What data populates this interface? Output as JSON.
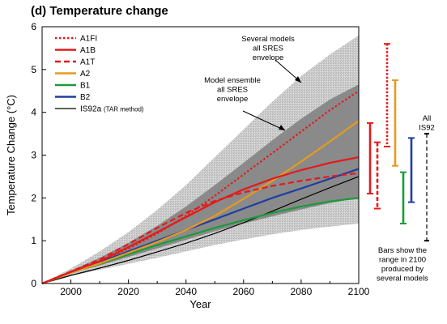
{
  "chart_data": {
    "type": "line",
    "title": "(d) Temperature change",
    "xlabel": "Year",
    "ylabel": "Temperature Change (°C)",
    "xlim": [
      1990,
      2100
    ],
    "ylim": [
      0,
      6
    ],
    "xticks": [
      "2000",
      "2020",
      "2040",
      "2060",
      "2080",
      "2100"
    ],
    "yticks": [
      "0",
      "1",
      "2",
      "3",
      "4",
      "5",
      "6"
    ],
    "x": [
      1990,
      2000,
      2010,
      2020,
      2030,
      2040,
      2050,
      2060,
      2070,
      2080,
      2090,
      2100
    ],
    "series": [
      {
        "name": "A1FI",
        "color": "#e31a1c",
        "style": "dotted",
        "values": [
          0,
          0.27,
          0.52,
          0.82,
          1.17,
          1.58,
          2.05,
          2.55,
          3.05,
          3.55,
          4.05,
          4.5
        ]
      },
      {
        "name": "A1B",
        "color": "#e31a1c",
        "style": "solid",
        "values": [
          0,
          0.27,
          0.52,
          0.85,
          1.2,
          1.55,
          1.9,
          2.2,
          2.45,
          2.65,
          2.82,
          2.95
        ]
      },
      {
        "name": "A1T",
        "color": "#e31a1c",
        "style": "dashed",
        "values": [
          0,
          0.28,
          0.56,
          0.92,
          1.3,
          1.65,
          1.93,
          2.13,
          2.28,
          2.4,
          2.5,
          2.58
        ]
      },
      {
        "name": "A2",
        "color": "#e69a1f",
        "style": "solid",
        "values": [
          0,
          0.25,
          0.47,
          0.72,
          0.97,
          1.25,
          1.58,
          1.98,
          2.4,
          2.85,
          3.32,
          3.8
        ]
      },
      {
        "name": "B1",
        "color": "#1a9b3a",
        "style": "solid",
        "values": [
          0,
          0.25,
          0.46,
          0.68,
          0.9,
          1.1,
          1.3,
          1.48,
          1.65,
          1.8,
          1.92,
          2.0
        ]
      },
      {
        "name": "B2",
        "color": "#1f3fa0",
        "style": "solid",
        "values": [
          0,
          0.26,
          0.5,
          0.75,
          1.0,
          1.25,
          1.5,
          1.75,
          2.0,
          2.22,
          2.45,
          2.68
        ]
      },
      {
        "name": "IS92a (TAR method)",
        "color": "#000000",
        "style": "solid",
        "values": [
          0,
          0.19,
          0.36,
          0.54,
          0.74,
          0.94,
          1.17,
          1.42,
          1.69,
          1.97,
          2.24,
          2.5
        ]
      }
    ],
    "envelopes": [
      {
        "label": "Several models all SRES envelope",
        "color": "#c8c8c8",
        "lower": [
          0,
          0.18,
          0.32,
          0.46,
          0.6,
          0.75,
          0.9,
          1.03,
          1.15,
          1.25,
          1.33,
          1.4
        ],
        "upper": [
          0,
          0.35,
          0.75,
          1.2,
          1.72,
          2.3,
          2.95,
          3.6,
          4.25,
          4.85,
          5.35,
          5.8
        ]
      },
      {
        "label": "Model ensemble all SRES envelope",
        "color": "#8a8a8a",
        "lower": [
          0,
          0.24,
          0.42,
          0.62,
          0.82,
          1.02,
          1.22,
          1.4,
          1.57,
          1.73,
          1.88,
          2.0
        ],
        "upper": [
          0,
          0.3,
          0.6,
          0.95,
          1.35,
          1.8,
          2.3,
          2.82,
          3.35,
          3.85,
          4.3,
          4.65
        ]
      }
    ],
    "range_bars": [
      {
        "name": "A1FI",
        "color": "#e31a1c",
        "style": "dotted",
        "min": 3.2,
        "max": 5.6
      },
      {
        "name": "A1B",
        "color": "#e31a1c",
        "style": "solid",
        "min": 2.1,
        "max": 3.75
      },
      {
        "name": "A1T",
        "color": "#e31a1c",
        "style": "dashed",
        "min": 1.75,
        "max": 3.3
      },
      {
        "name": "A2",
        "color": "#e69a1f",
        "style": "solid",
        "min": 2.75,
        "max": 4.75
      },
      {
        "name": "B1",
        "color": "#1a9b3a",
        "style": "solid",
        "min": 1.4,
        "max": 2.6
      },
      {
        "name": "B2",
        "color": "#1f3fa0",
        "style": "solid",
        "min": 1.9,
        "max": 3.4
      },
      {
        "name": "All IS92",
        "color": "#000000",
        "style": "dashed",
        "min": 1.0,
        "max": 3.5
      }
    ],
    "annotations": {
      "several_models": [
        "Several models",
        "all SRES",
        "envelope"
      ],
      "ensemble": [
        "Model ensemble",
        "all SRES",
        "envelope"
      ],
      "all_is92": [
        "All",
        "IS92"
      ],
      "bars_note": [
        "Bars show the",
        "range in 2100",
        "produced by",
        "several models"
      ]
    }
  }
}
